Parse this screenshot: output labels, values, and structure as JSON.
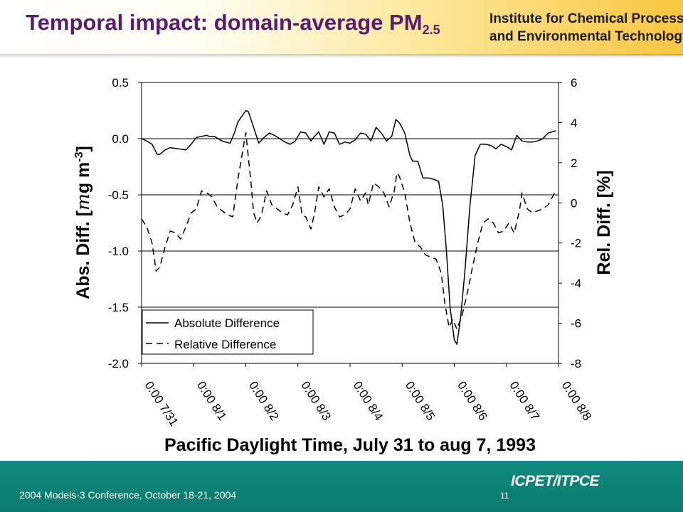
{
  "header": {
    "title": "Temporal impact:  domain-average PM",
    "title_subscript": "2.5",
    "institute_line1": "Institute for Chemical Process",
    "institute_line2": "and Environmental Technology"
  },
  "footer": {
    "conference": "2004 Models-3 Conference, October 18-21, 2004",
    "page_number": "11",
    "logo_text": "ICPET/ITPCE"
  },
  "colors": {
    "title": "#5a1a6e",
    "footer_bg": "#0b7a6e",
    "header_gold": "#f8c640"
  },
  "chart_data": {
    "type": "line",
    "xlabel": "Pacific Daylight Time, July 31 to aug 7, 1993",
    "ylabel_left_prefix": "Abs. Diff. [",
    "ylabel_left_mu": "m",
    "ylabel_left_mid": "g m",
    "ylabel_left_exp": "-3",
    "ylabel_left_suffix": "]",
    "ylabel_right": "Rel. Diff. [%]",
    "x_unit": "days since 0:00 7/31",
    "x_tick_labels": [
      "0:00 7/31",
      "0:00 8/1",
      "0:00 8/2",
      "0:00 8/3",
      "0:00 8/4",
      "0:00 8/5",
      "0:00 8/6",
      "0:00 8/7",
      "0:00 8/8"
    ],
    "y_left_ticks": [
      "0.5",
      "0.0",
      "-0.5",
      "-1.0",
      "-1.5",
      "-2.0"
    ],
    "y_left_lim": [
      -2.0,
      0.5
    ],
    "y_right_ticks": [
      "6",
      "4",
      "2",
      "0",
      "-2",
      "-4",
      "-6",
      "-8"
    ],
    "y_right_lim": [
      -8,
      6
    ],
    "grid": "horizontal at left-axis ticks",
    "legend_position": "bottom-left",
    "series": [
      {
        "name": "Absolute Difference",
        "axis": "left",
        "style": "solid",
        "points": [
          [
            0.0,
            0.0
          ],
          [
            0.1,
            -0.02
          ],
          [
            0.2,
            -0.05
          ],
          [
            0.3,
            -0.14
          ],
          [
            0.35,
            -0.14
          ],
          [
            0.45,
            -0.1
          ],
          [
            0.55,
            -0.08
          ],
          [
            0.7,
            -0.09
          ],
          [
            0.85,
            -0.1
          ],
          [
            0.95,
            -0.05
          ],
          [
            1.05,
            0.01
          ],
          [
            1.15,
            0.02
          ],
          [
            1.25,
            0.03
          ],
          [
            1.3,
            0.02
          ],
          [
            1.4,
            0.02
          ],
          [
            1.5,
            -0.01
          ],
          [
            1.6,
            -0.03
          ],
          [
            1.7,
            -0.04
          ],
          [
            1.78,
            0.05
          ],
          [
            1.85,
            0.15
          ],
          [
            2.0,
            0.25
          ],
          [
            2.05,
            0.24
          ],
          [
            2.15,
            0.1
          ],
          [
            2.25,
            -0.04
          ],
          [
            2.35,
            0.01
          ],
          [
            2.45,
            0.05
          ],
          [
            2.55,
            0.03
          ],
          [
            2.65,
            0.0
          ],
          [
            2.75,
            -0.03
          ],
          [
            2.85,
            -0.05
          ],
          [
            2.95,
            -0.02
          ],
          [
            3.05,
            0.06
          ],
          [
            3.15,
            0.05
          ],
          [
            3.25,
            -0.02
          ],
          [
            3.3,
            0.01
          ],
          [
            3.4,
            0.06
          ],
          [
            3.5,
            -0.05
          ],
          [
            3.6,
            0.06
          ],
          [
            3.7,
            0.05
          ],
          [
            3.8,
            -0.05
          ],
          [
            3.9,
            -0.03
          ],
          [
            4.0,
            -0.04
          ],
          [
            4.1,
            -0.01
          ],
          [
            4.2,
            0.05
          ],
          [
            4.3,
            0.04
          ],
          [
            4.4,
            -0.02
          ],
          [
            4.5,
            0.1
          ],
          [
            4.6,
            0.05
          ],
          [
            4.7,
            -0.02
          ],
          [
            4.8,
            0.02
          ],
          [
            4.88,
            0.17
          ],
          [
            4.95,
            0.14
          ],
          [
            5.05,
            0.05
          ],
          [
            5.15,
            -0.15
          ],
          [
            5.2,
            -0.2
          ],
          [
            5.3,
            -0.2
          ],
          [
            5.4,
            -0.35
          ],
          [
            5.5,
            -0.35
          ],
          [
            5.6,
            -0.36
          ],
          [
            5.7,
            -0.38
          ],
          [
            5.78,
            -0.6
          ],
          [
            5.85,
            -1.0
          ],
          [
            5.92,
            -1.5
          ],
          [
            6.0,
            -1.79
          ],
          [
            6.05,
            -1.83
          ],
          [
            6.12,
            -1.6
          ],
          [
            6.2,
            -1.2
          ],
          [
            6.3,
            -0.6
          ],
          [
            6.4,
            -0.15
          ],
          [
            6.5,
            -0.05
          ],
          [
            6.6,
            -0.05
          ],
          [
            6.7,
            -0.06
          ],
          [
            6.8,
            -0.09
          ],
          [
            6.9,
            -0.05
          ],
          [
            7.0,
            -0.07
          ],
          [
            7.1,
            -0.1
          ],
          [
            7.2,
            0.03
          ],
          [
            7.3,
            -0.02
          ],
          [
            7.4,
            -0.03
          ],
          [
            7.5,
            -0.03
          ],
          [
            7.6,
            -0.02
          ],
          [
            7.7,
            0.0
          ],
          [
            7.8,
            0.05
          ],
          [
            7.95,
            0.07
          ]
        ]
      },
      {
        "name": "Relative Difference",
        "axis": "right",
        "style": "dashed",
        "points": [
          [
            0.0,
            -0.8
          ],
          [
            0.1,
            -1.2
          ],
          [
            0.2,
            -2.0
          ],
          [
            0.28,
            -3.4
          ],
          [
            0.35,
            -3.2
          ],
          [
            0.45,
            -2.2
          ],
          [
            0.55,
            -1.4
          ],
          [
            0.65,
            -1.5
          ],
          [
            0.75,
            -1.8
          ],
          [
            0.85,
            -1.2
          ],
          [
            0.95,
            -0.5
          ],
          [
            1.05,
            -0.3
          ],
          [
            1.15,
            0.6
          ],
          [
            1.25,
            0.5
          ],
          [
            1.35,
            0.3
          ],
          [
            1.45,
            -0.2
          ],
          [
            1.55,
            -0.4
          ],
          [
            1.65,
            -0.6
          ],
          [
            1.75,
            -0.7
          ],
          [
            1.85,
            1.2
          ],
          [
            2.0,
            3.5
          ],
          [
            2.1,
            1.0
          ],
          [
            2.15,
            -0.5
          ],
          [
            2.22,
            -1.0
          ],
          [
            2.3,
            -0.6
          ],
          [
            2.4,
            0.6
          ],
          [
            2.5,
            -0.1
          ],
          [
            2.6,
            -0.3
          ],
          [
            2.7,
            -0.5
          ],
          [
            2.8,
            -0.6
          ],
          [
            2.9,
            -0.1
          ],
          [
            3.0,
            0.8
          ],
          [
            3.08,
            -0.6
          ],
          [
            3.15,
            -0.7
          ],
          [
            3.25,
            -1.3
          ],
          [
            3.32,
            -0.5
          ],
          [
            3.4,
            0.8
          ],
          [
            3.5,
            0.3
          ],
          [
            3.6,
            0.7
          ],
          [
            3.7,
            -0.2
          ],
          [
            3.8,
            -0.7
          ],
          [
            3.9,
            -0.6
          ],
          [
            4.0,
            -0.3
          ],
          [
            4.1,
            0.7
          ],
          [
            4.2,
            0.1
          ],
          [
            4.3,
            0.5
          ],
          [
            4.35,
            -0.1
          ],
          [
            4.45,
            1.0
          ],
          [
            4.55,
            0.8
          ],
          [
            4.65,
            0.5
          ],
          [
            4.75,
            -0.2
          ],
          [
            4.85,
            0.6
          ],
          [
            4.9,
            1.5
          ],
          [
            4.95,
            1.3
          ],
          [
            5.05,
            0.5
          ],
          [
            5.15,
            -1.0
          ],
          [
            5.25,
            -2.0
          ],
          [
            5.35,
            -2.2
          ],
          [
            5.45,
            -2.6
          ],
          [
            5.55,
            -2.7
          ],
          [
            5.65,
            -2.8
          ],
          [
            5.75,
            -3.5
          ],
          [
            5.82,
            -5.0
          ],
          [
            5.9,
            -6.2
          ],
          [
            5.97,
            -5.8
          ],
          [
            6.05,
            -6.3
          ],
          [
            6.15,
            -5.6
          ],
          [
            6.25,
            -4.5
          ],
          [
            6.35,
            -3.2
          ],
          [
            6.45,
            -2.0
          ],
          [
            6.55,
            -1.0
          ],
          [
            6.65,
            -0.8
          ],
          [
            6.75,
            -1.0
          ],
          [
            6.85,
            -1.5
          ],
          [
            6.95,
            -1.4
          ],
          [
            7.05,
            -1.0
          ],
          [
            7.15,
            -1.5
          ],
          [
            7.25,
            -0.4
          ],
          [
            7.3,
            0.5
          ],
          [
            7.4,
            -0.3
          ],
          [
            7.5,
            -0.5
          ],
          [
            7.6,
            -0.4
          ],
          [
            7.7,
            -0.3
          ],
          [
            7.8,
            -0.1
          ],
          [
            7.95,
            0.6
          ]
        ]
      }
    ]
  }
}
